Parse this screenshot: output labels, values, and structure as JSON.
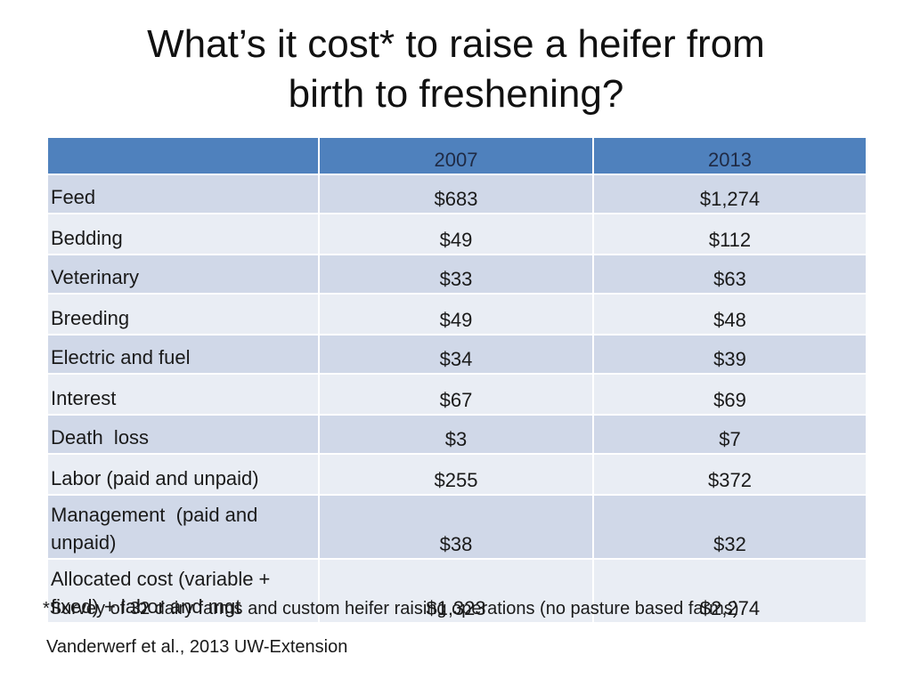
{
  "slide": {
    "title_line1": "What’s it cost* to raise a heifer from",
    "title_line2": "birth to freshening?"
  },
  "table": {
    "headers": [
      "",
      "2007",
      "2013"
    ],
    "rows": [
      {
        "label": "Feed",
        "y2007": "$683",
        "y2013": "$1,274"
      },
      {
        "label": "Bedding",
        "y2007": "$49",
        "y2013": "$112"
      },
      {
        "label": "Veterinary",
        "y2007": "$33",
        "y2013": "$63"
      },
      {
        "label": "Breeding",
        "y2007": "$49",
        "y2013": "$48"
      },
      {
        "label": "Electric and fuel",
        "y2007": "$34",
        "y2013": "$39"
      },
      {
        "label": "Interest",
        "y2007": "$67",
        "y2013": "$69"
      },
      {
        "label": "Death  loss",
        "y2007": "$3",
        "y2013": "$7"
      },
      {
        "label": "Labor (paid and unpaid)",
        "y2007": "$255",
        "y2013": "$372"
      },
      {
        "label_line1": "Management  (paid and",
        "label_line2": "unpaid)",
        "y2007": "$38",
        "y2013": "$32"
      },
      {
        "label_line1": "Allocated cost (variable +",
        "label_line2": "fixed) + labor and mgt",
        "y2007": "$1,323",
        "y2013": "$2,274"
      }
    ]
  },
  "footnote": "*Survey of 32 dairy farms and custom heifer raising operations (no pasture based farms)",
  "source": "Vanderwerf et al., 2013 UW-Extension",
  "colors": {
    "header_bg": "#4f81bd",
    "row_odd_bg": "#d0d8e8",
    "row_even_bg": "#e9edf4"
  }
}
